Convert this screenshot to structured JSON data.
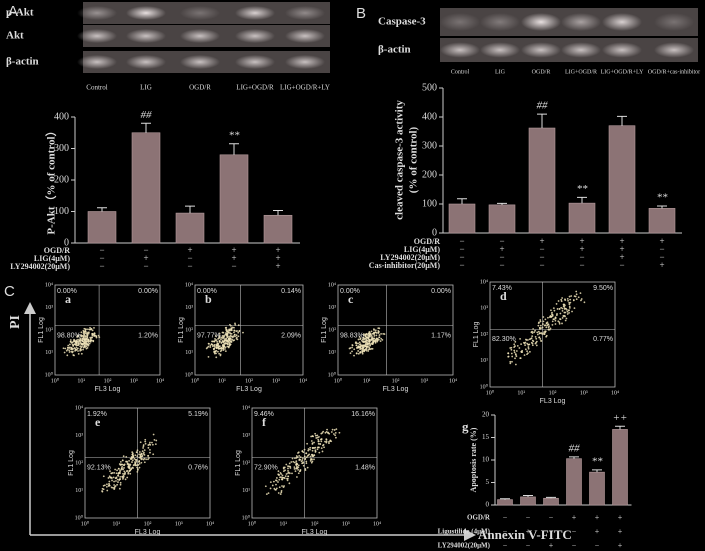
{
  "panels": {
    "a": {
      "label": "A",
      "blot_rows": [
        "p-Akt",
        "Akt",
        "β-actin"
      ],
      "lanes": [
        "Control",
        "LIG",
        "OGD/R",
        "LIG+OGD/R",
        "LIG+OGD/R+LY"
      ]
    },
    "b": {
      "label": "B",
      "blot_rows": [
        "Caspase-3",
        "β-actin"
      ],
      "lanes": [
        "Control",
        "LIG",
        "OGD/R",
        "LIG+OGD/R",
        "LIG+OGD/R+LY",
        "OGD/R+cas-inhibitor"
      ]
    },
    "c": {
      "label": "C",
      "y_title": "PI",
      "x_title": "Annexin V-FITC"
    }
  },
  "flow": {
    "x_label": "FL3 Log",
    "y_label": "FL1 Log",
    "ticks": [
      "10⁰",
      "10¹",
      "10²",
      "10³",
      "10⁴"
    ],
    "plots": [
      {
        "label": "a",
        "quadrants": [
          "0.00%",
          "0.00%",
          "98.80%",
          "1.20%"
        ]
      },
      {
        "label": "b",
        "quadrants": [
          "0.00%",
          "0.14%",
          "97.77%",
          "2.09%"
        ]
      },
      {
        "label": "c",
        "quadrants": [
          "0.00%",
          "0.00%",
          "98.83%",
          "1.17%"
        ]
      },
      {
        "label": "d",
        "quadrants": [
          "7.43%",
          "9.50%",
          "82.30%",
          "0.77%"
        ]
      },
      {
        "label": "e",
        "quadrants": [
          "1.92%",
          "5.19%",
          "92.13%",
          "0.76%"
        ]
      },
      {
        "label": "f",
        "quadrants": [
          "9.46%",
          "16.16%",
          "72.90%",
          "1.48%"
        ]
      }
    ]
  },
  "chart_data": [
    {
      "type": "bar",
      "ylabel": "P-Akt（% of control）",
      "color": "#8c7375",
      "categories": [
        null,
        null,
        null,
        null,
        null
      ],
      "values": [
        100,
        350,
        95,
        280,
        88
      ],
      "errors": [
        12,
        30,
        22,
        35,
        15
      ],
      "annotations": [
        null,
        "##",
        null,
        "**",
        null
      ],
      "ylim": [
        0,
        400
      ],
      "yticks": [
        0,
        100,
        200,
        300,
        400
      ],
      "treatments": [
        {
          "name": "OGD/R",
          "signs": [
            "−",
            "−",
            "+",
            "+",
            "+"
          ]
        },
        {
          "name": "LIG(4μM)",
          "signs": [
            "−",
            "+",
            "−",
            "+",
            "+"
          ]
        },
        {
          "name": "LY294002(20μM)",
          "signs": [
            "−",
            "−",
            "−",
            "−",
            "+"
          ]
        }
      ]
    },
    {
      "type": "bar",
      "ylabel": [
        "cleaved caspase-3 activity",
        "(% of control)"
      ],
      "color": "#8c7375",
      "categories": [
        null,
        null,
        null,
        null,
        null,
        null
      ],
      "values": [
        100,
        97,
        362,
        103,
        370,
        85
      ],
      "errors": [
        18,
        5,
        48,
        20,
        32,
        8
      ],
      "annotations": [
        null,
        null,
        "##",
        "**",
        null,
        "**"
      ],
      "ylim": [
        0,
        500
      ],
      "yticks": [
        0,
        100,
        200,
        300,
        400,
        500
      ],
      "treatments": [
        {
          "name": "OGD/R",
          "signs": [
            "−",
            "−",
            "+",
            "+",
            "+",
            "+"
          ]
        },
        {
          "name": "LIG(4μM)",
          "signs": [
            "−",
            "+",
            "−",
            "+",
            "+",
            "−"
          ]
        },
        {
          "name": "LY294002(20μM)",
          "signs": [
            "−",
            "−",
            "−",
            "−",
            "+",
            "−"
          ]
        },
        {
          "name": "Cas-inhibitor(20μM)",
          "signs": [
            "−",
            "−",
            "−",
            "−",
            "−",
            "+"
          ]
        }
      ]
    },
    {
      "type": "bar",
      "label": "g",
      "ylabel": "Apoptosis rate (%)",
      "color": "#8c7375",
      "categories": [
        null,
        null,
        null,
        null,
        null,
        null
      ],
      "values": [
        1.2,
        1.8,
        1.5,
        10.3,
        7.3,
        16.8
      ],
      "errors": [
        0.2,
        0.3,
        0.2,
        0.4,
        0.5,
        0.7
      ],
      "annotations": [
        null,
        null,
        null,
        "##",
        "**",
        "++"
      ],
      "ylim": [
        0,
        20
      ],
      "yticks": [
        0,
        5,
        10,
        15,
        20
      ],
      "treatments": [
        {
          "name": "OGD/R",
          "signs": [
            "−",
            "−",
            "−",
            "+",
            "+",
            "+"
          ]
        },
        {
          "name": "Ligustilide (4μM)",
          "signs": [
            "−",
            "+",
            "−",
            "−",
            "+",
            "+"
          ]
        },
        {
          "name": "LY294002(20μM)",
          "signs": [
            "−",
            "−",
            "+",
            "−",
            "−",
            "+"
          ]
        }
      ]
    }
  ]
}
